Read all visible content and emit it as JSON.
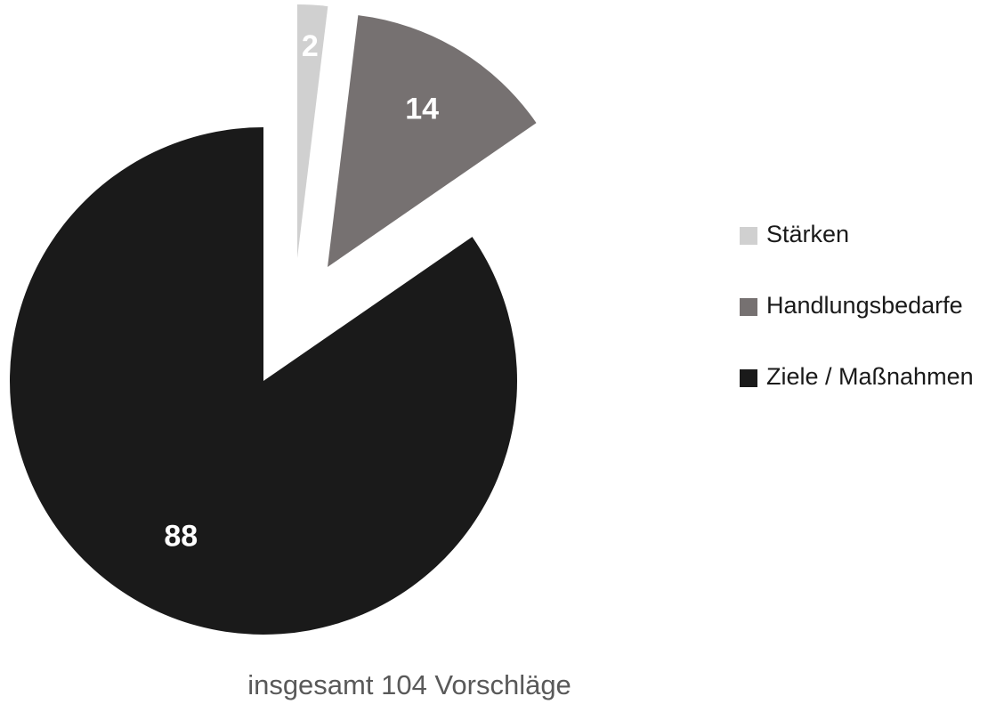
{
  "chart_data": {
    "type": "pie",
    "categories": [
      "Stärken",
      "Handlungsbedarfe",
      "Ziele / Maßnahmen"
    ],
    "values": [
      2,
      14,
      88
    ],
    "colors": [
      "#d0d0d0",
      "#767171",
      "#1a1a1a"
    ],
    "caption": "insgesamt 104 Vorschläge"
  }
}
